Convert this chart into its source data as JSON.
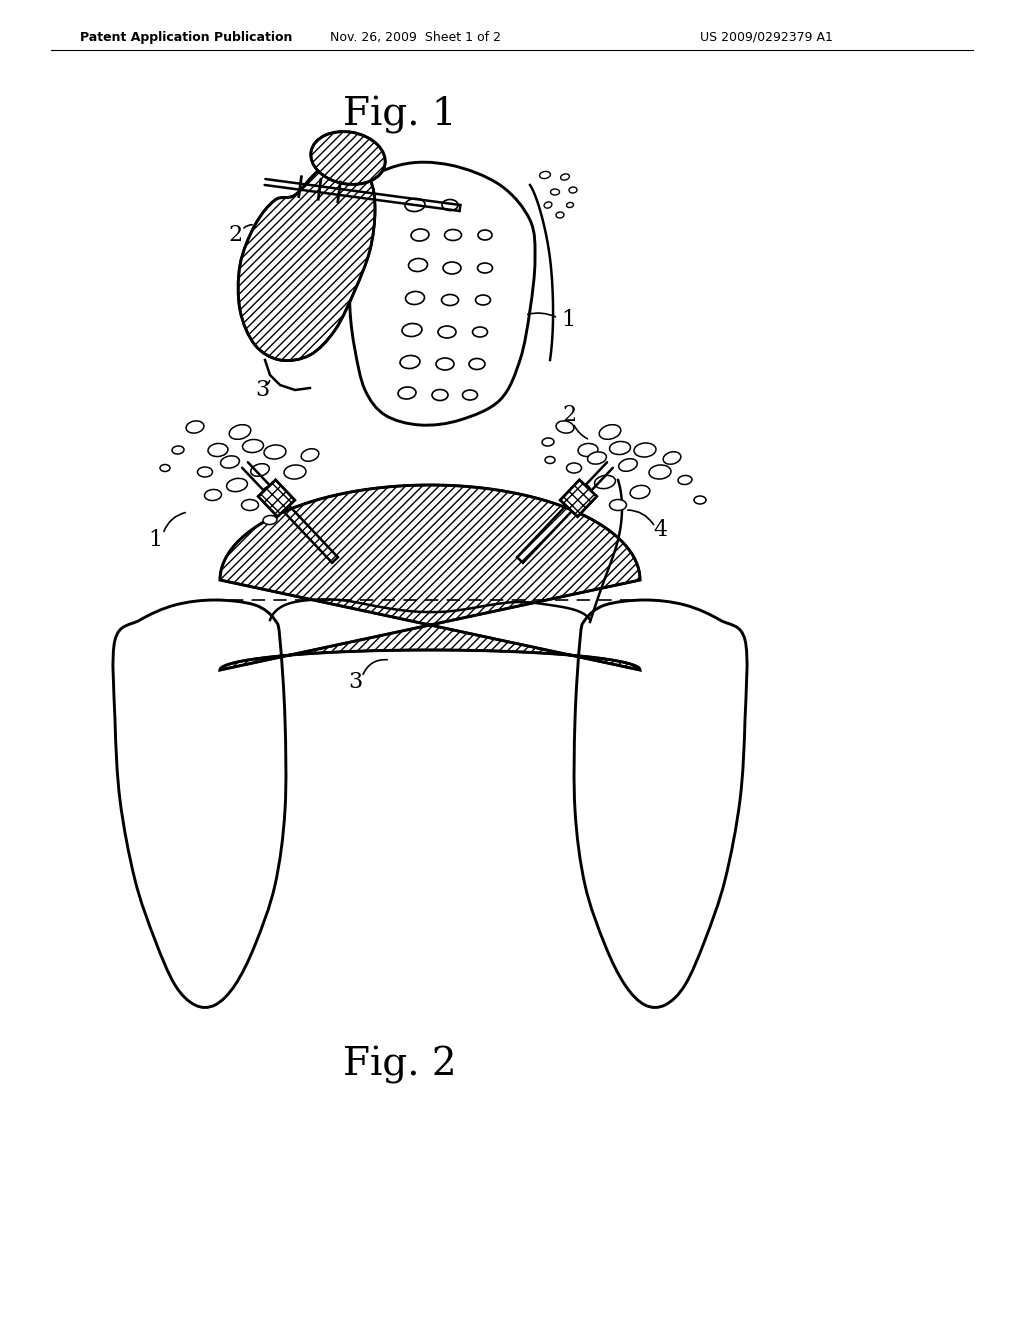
{
  "background_color": "#ffffff",
  "header_left": "Patent Application Publication",
  "header_mid": "Nov. 26, 2009  Sheet 1 of 2",
  "header_right": "US 2009/0292379 A1",
  "fig1_title": "Fig. 1",
  "fig2_title": "Fig. 2",
  "line_color": "#000000"
}
